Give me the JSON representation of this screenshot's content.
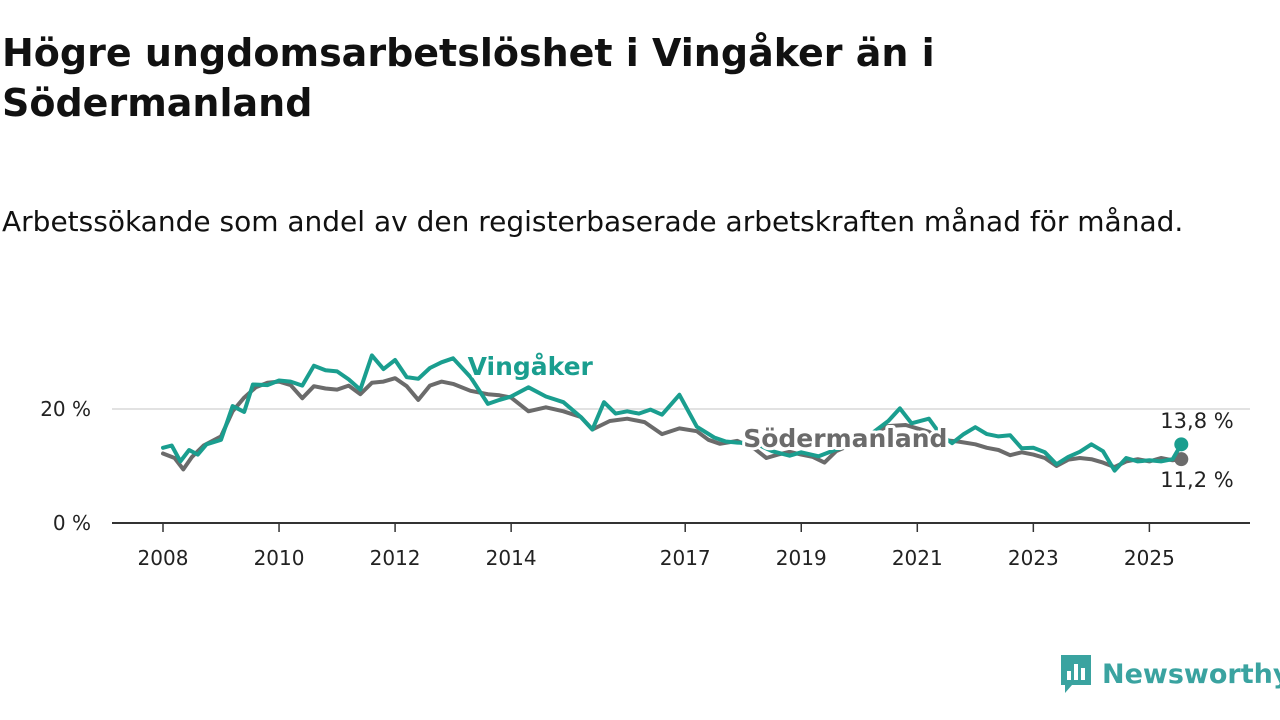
{
  "title": "Högre ungdomsarbetslöshet i Vingåker än i Södermanland",
  "subtitle": "Arbetssökande som andel av den registerbaserade arbetskraften månad för månad.",
  "brand": {
    "name": "Newsworthy",
    "icon": "newsworthy-logo-icon",
    "color": "#3aa3a0"
  },
  "chart_data": {
    "type": "line",
    "x_unit": "year",
    "x_ticks": [
      2008,
      2010,
      2012,
      2014,
      2017,
      2019,
      2021,
      2023,
      2025
    ],
    "x_tick_labels": [
      "2008",
      "2010",
      "2012",
      "2014",
      "2017",
      "2019",
      "2021",
      "2023",
      "2025"
    ],
    "xlim": [
      2008,
      2025.7
    ],
    "y_ticks": [
      0,
      20
    ],
    "y_tick_labels": [
      "0 %",
      "20 %"
    ],
    "ylim": [
      0,
      30
    ],
    "grid": "horizontal",
    "legend": "inline labels",
    "series": [
      {
        "name": "Vingåker",
        "color": "#1a9e8f",
        "end_label": "13,8 %",
        "points": [
          [
            2008.0,
            13.2
          ],
          [
            2008.15,
            13.6
          ],
          [
            2008.3,
            10.8
          ],
          [
            2008.45,
            12.8
          ],
          [
            2008.6,
            12.0
          ],
          [
            2008.75,
            13.8
          ],
          [
            2009.0,
            14.6
          ],
          [
            2009.2,
            20.5
          ],
          [
            2009.4,
            19.5
          ],
          [
            2009.55,
            24.3
          ],
          [
            2009.8,
            24.2
          ],
          [
            2010.0,
            25.0
          ],
          [
            2010.2,
            24.8
          ],
          [
            2010.4,
            24.1
          ],
          [
            2010.6,
            27.6
          ],
          [
            2010.8,
            26.8
          ],
          [
            2011.0,
            26.6
          ],
          [
            2011.2,
            25.2
          ],
          [
            2011.4,
            23.4
          ],
          [
            2011.6,
            29.4
          ],
          [
            2011.8,
            27.0
          ],
          [
            2012.0,
            28.6
          ],
          [
            2012.2,
            25.6
          ],
          [
            2012.4,
            25.3
          ],
          [
            2012.6,
            27.2
          ],
          [
            2012.8,
            28.2
          ],
          [
            2013.0,
            28.9
          ],
          [
            2013.3,
            25.6
          ],
          [
            2013.6,
            20.9
          ],
          [
            2013.8,
            21.6
          ],
          [
            2014.0,
            22.2
          ],
          [
            2014.3,
            23.8
          ],
          [
            2014.6,
            22.2
          ],
          [
            2014.9,
            21.2
          ],
          [
            2015.2,
            18.6
          ],
          [
            2015.4,
            16.4
          ],
          [
            2015.6,
            21.2
          ],
          [
            2015.8,
            19.2
          ],
          [
            2016.0,
            19.6
          ],
          [
            2016.2,
            19.2
          ],
          [
            2016.4,
            19.9
          ],
          [
            2016.6,
            19.0
          ],
          [
            2016.9,
            22.5
          ],
          [
            2017.2,
            16.9
          ],
          [
            2017.5,
            15.0
          ],
          [
            2017.7,
            14.3
          ],
          [
            2017.9,
            14.1
          ],
          [
            2018.2,
            14.0
          ],
          [
            2018.5,
            12.6
          ],
          [
            2018.8,
            11.8
          ],
          [
            2019.0,
            12.4
          ],
          [
            2019.3,
            11.7
          ],
          [
            2019.6,
            12.9
          ],
          [
            2019.9,
            13.9
          ],
          [
            2020.2,
            15.6
          ],
          [
            2020.5,
            17.9
          ],
          [
            2020.7,
            20.1
          ],
          [
            2020.9,
            17.5
          ],
          [
            2021.2,
            18.3
          ],
          [
            2021.4,
            15.5
          ],
          [
            2021.6,
            14.0
          ],
          [
            2021.8,
            15.6
          ],
          [
            2022.0,
            16.8
          ],
          [
            2022.2,
            15.6
          ],
          [
            2022.4,
            15.2
          ],
          [
            2022.6,
            15.4
          ],
          [
            2022.8,
            13.1
          ],
          [
            2023.0,
            13.2
          ],
          [
            2023.2,
            12.4
          ],
          [
            2023.4,
            10.3
          ],
          [
            2023.6,
            11.6
          ],
          [
            2023.8,
            12.5
          ],
          [
            2024.0,
            13.8
          ],
          [
            2024.2,
            12.6
          ],
          [
            2024.4,
            9.2
          ],
          [
            2024.6,
            11.4
          ],
          [
            2024.8,
            10.8
          ],
          [
            2025.0,
            11.0
          ],
          [
            2025.2,
            10.8
          ],
          [
            2025.4,
            11.2
          ],
          [
            2025.55,
            13.8
          ]
        ]
      },
      {
        "name": "Södermanland",
        "color": "#6b6b6b",
        "end_label": "11,2 %",
        "points": [
          [
            2008.0,
            12.2
          ],
          [
            2008.2,
            11.4
          ],
          [
            2008.35,
            9.4
          ],
          [
            2008.5,
            11.6
          ],
          [
            2008.7,
            13.6
          ],
          [
            2009.0,
            15.2
          ],
          [
            2009.2,
            19.6
          ],
          [
            2009.4,
            22.0
          ],
          [
            2009.6,
            23.8
          ],
          [
            2009.8,
            24.6
          ],
          [
            2010.0,
            24.8
          ],
          [
            2010.2,
            24.2
          ],
          [
            2010.4,
            21.9
          ],
          [
            2010.6,
            24.0
          ],
          [
            2010.8,
            23.6
          ],
          [
            2011.0,
            23.4
          ],
          [
            2011.2,
            24.1
          ],
          [
            2011.4,
            22.6
          ],
          [
            2011.6,
            24.6
          ],
          [
            2011.8,
            24.8
          ],
          [
            2012.0,
            25.4
          ],
          [
            2012.2,
            24.0
          ],
          [
            2012.4,
            21.6
          ],
          [
            2012.6,
            24.1
          ],
          [
            2012.8,
            24.8
          ],
          [
            2013.0,
            24.4
          ],
          [
            2013.3,
            23.2
          ],
          [
            2013.6,
            22.6
          ],
          [
            2013.8,
            22.4
          ],
          [
            2014.0,
            22.0
          ],
          [
            2014.3,
            19.6
          ],
          [
            2014.6,
            20.3
          ],
          [
            2014.9,
            19.6
          ],
          [
            2015.2,
            18.6
          ],
          [
            2015.4,
            16.4
          ],
          [
            2015.7,
            17.9
          ],
          [
            2016.0,
            18.3
          ],
          [
            2016.3,
            17.7
          ],
          [
            2016.6,
            15.6
          ],
          [
            2016.9,
            16.6
          ],
          [
            2017.2,
            16.1
          ],
          [
            2017.4,
            14.6
          ],
          [
            2017.6,
            13.9
          ],
          [
            2017.9,
            14.4
          ],
          [
            2018.2,
            13.0
          ],
          [
            2018.4,
            11.4
          ],
          [
            2018.6,
            12.0
          ],
          [
            2018.8,
            12.5
          ],
          [
            2019.0,
            12.0
          ],
          [
            2019.2,
            11.6
          ],
          [
            2019.4,
            10.6
          ],
          [
            2019.6,
            12.6
          ],
          [
            2019.9,
            13.9
          ],
          [
            2020.2,
            15.6
          ],
          [
            2020.5,
            17.0
          ],
          [
            2020.8,
            17.2
          ],
          [
            2021.0,
            16.6
          ],
          [
            2021.2,
            16.0
          ],
          [
            2021.4,
            14.6
          ],
          [
            2021.7,
            14.3
          ],
          [
            2022.0,
            13.8
          ],
          [
            2022.2,
            13.2
          ],
          [
            2022.4,
            12.8
          ],
          [
            2022.6,
            11.9
          ],
          [
            2022.8,
            12.4
          ],
          [
            2023.0,
            12.0
          ],
          [
            2023.2,
            11.4
          ],
          [
            2023.4,
            10.0
          ],
          [
            2023.6,
            11.1
          ],
          [
            2023.8,
            11.4
          ],
          [
            2024.0,
            11.2
          ],
          [
            2024.2,
            10.6
          ],
          [
            2024.4,
            9.8
          ],
          [
            2024.6,
            10.8
          ],
          [
            2024.8,
            11.2
          ],
          [
            2025.0,
            10.8
          ],
          [
            2025.2,
            11.4
          ],
          [
            2025.4,
            11.0
          ],
          [
            2025.55,
            11.2
          ]
        ]
      }
    ]
  }
}
